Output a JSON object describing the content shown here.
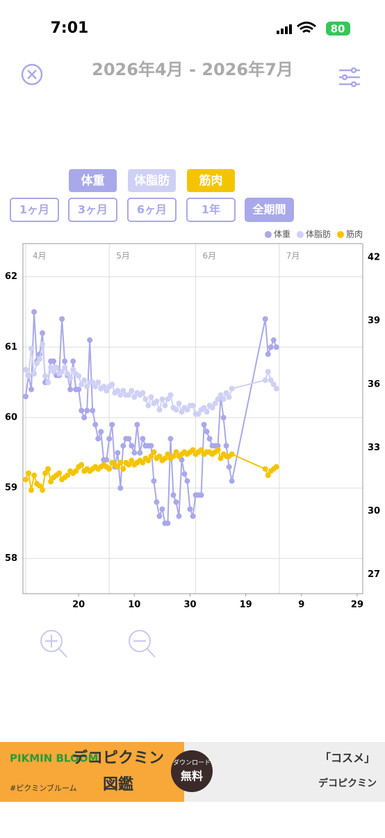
{
  "status_bar": {
    "time": "7:01",
    "battery": "80"
  },
  "header": {
    "title": "2026年4月 - 2026年7月"
  },
  "controls": {
    "ranges": [
      "1ヶ月",
      "3ヶ月",
      "6ヶ月",
      "1年",
      "全期間"
    ]
  },
  "chart_data": {
    "type": "line",
    "x": [
      1,
      2,
      3,
      4,
      5,
      6,
      7,
      8,
      9,
      10,
      11,
      12,
      13,
      14,
      15,
      16,
      17,
      18,
      19,
      20,
      21,
      22,
      23,
      24,
      25,
      26,
      27,
      28,
      29,
      30,
      31,
      32,
      33,
      34,
      35,
      36,
      37,
      38,
      39,
      40,
      41,
      42,
      43,
      44,
      45,
      46,
      47,
      48,
      49,
      50,
      51,
      52,
      53,
      54,
      55,
      56,
      57,
      58,
      59,
      60,
      61,
      62,
      63,
      64,
      65,
      66,
      67,
      68,
      69,
      70,
      71,
      72,
      73,
      74,
      75,
      87,
      88,
      89,
      90,
      91
    ],
    "series": [
      {
        "name": "体重",
        "color": "#a9a8ea",
        "axis": "y",
        "values": [
          60.3,
          60.6,
          60.4,
          61.5,
          60.8,
          60.9,
          61.2,
          60.5,
          60.5,
          60.8,
          60.8,
          60.6,
          60.6,
          61.4,
          60.8,
          60.6,
          60.4,
          60.8,
          60.4,
          60.4,
          60.1,
          60.0,
          60.1,
          61.1,
          60.1,
          59.9,
          59.7,
          59.8,
          59.4,
          59.4,
          59.7,
          59.9,
          59.3,
          59.5,
          59.0,
          59.6,
          59.7,
          59.7,
          59.6,
          59.5,
          59.9,
          59.5,
          59.7,
          59.6,
          59.6,
          59.6,
          59.1,
          58.8,
          58.6,
          58.7,
          58.5,
          58.5,
          59.7,
          58.9,
          58.8,
          58.6,
          59.4,
          59.2,
          59.1,
          58.7,
          58.6,
          58.9,
          58.9,
          58.9,
          59.9,
          59.8,
          59.7,
          59.6,
          59.6,
          59.6,
          60.3,
          60.0,
          59.6,
          59.3,
          59.1,
          61.4,
          60.9,
          61.0,
          61.1,
          61.0
        ]
      },
      {
        "name": "体脂肪",
        "color": "#cfd0f5",
        "axis": "y2",
        "values": [
          36.7,
          36.4,
          37.7,
          36.5,
          37.0,
          37.2,
          37.9,
          36.4,
          36.1,
          36.8,
          36.6,
          36.8,
          36.5,
          36.6,
          36.8,
          36.5,
          36.3,
          36.7,
          36.5,
          36.4,
          36.0,
          36.2,
          35.9,
          36.1,
          36.1,
          35.9,
          36.1,
          35.8,
          35.9,
          35.7,
          35.9,
          36.0,
          35.6,
          35.7,
          35.5,
          35.7,
          35.5,
          35.5,
          35.7,
          35.4,
          35.6,
          35.5,
          35.6,
          35.3,
          35.0,
          35.4,
          35.1,
          35.2,
          34.8,
          35.3,
          35.0,
          35.3,
          35.5,
          34.9,
          34.8,
          35.1,
          34.7,
          34.9,
          34.8,
          35.0,
          35.0,
          34.6,
          34.6,
          34.8,
          34.9,
          34.7,
          35.0,
          34.9,
          35.1,
          35.3,
          35.5,
          35.3,
          35.6,
          35.4,
          35.8,
          36.2,
          36.6,
          36.2,
          36.0,
          35.8
        ]
      },
      {
        "name": "筋肉",
        "color": "#f5c400",
        "axis": "y2",
        "values": [
          31.5,
          31.8,
          31.0,
          31.7,
          31.3,
          31.2,
          31.0,
          31.8,
          32.0,
          31.4,
          31.6,
          31.7,
          31.8,
          31.5,
          31.6,
          31.7,
          31.9,
          31.8,
          31.9,
          32.1,
          32.2,
          31.9,
          32.0,
          31.9,
          32.0,
          32.1,
          32.0,
          32.1,
          32.2,
          32.1,
          32.0,
          32.3,
          32.2,
          32.1,
          32.3,
          32.0,
          32.3,
          32.2,
          32.4,
          32.2,
          32.3,
          32.4,
          32.3,
          32.5,
          32.4,
          32.6,
          32.8,
          32.5,
          32.6,
          32.4,
          32.5,
          32.7,
          32.5,
          32.6,
          32.8,
          32.6,
          32.7,
          32.8,
          32.7,
          32.8,
          32.9,
          32.7,
          32.8,
          32.9,
          32.7,
          32.8,
          32.8,
          32.7,
          32.8,
          32.9,
          32.5,
          32.7,
          32.6,
          32.6,
          32.7,
          32.0,
          31.7,
          31.9,
          32.0,
          32.1
        ]
      }
    ],
    "xlim": [
      0,
      122
    ],
    "xticks": [
      20,
      {
        "value": 40,
        "label": "10"
      },
      {
        "value": 60,
        "label": "30"
      },
      {
        "value": 80,
        "label": "19"
      },
      {
        "value": 100,
        "label": "9"
      },
      {
        "value": 120,
        "label": "29"
      }
    ],
    "xticks_top": [
      {
        "value": 1,
        "label": "4月"
      },
      {
        "value": 31,
        "label": "5月"
      },
      {
        "value": 62,
        "label": "6月"
      },
      {
        "value": 92,
        "label": "7月"
      }
    ],
    "ylim": [
      57.5,
      62.47
    ],
    "yticks": [
      58,
      59,
      60,
      61,
      62
    ],
    "y2lim": [
      26.1,
      42.66
    ],
    "y2ticks": [
      27,
      30,
      33,
      36,
      39,
      42
    ],
    "grid": true,
    "legend": "top-right"
  },
  "ad": {
    "brand": "PIKMIN BLOOM",
    "title": "デコピクミン",
    "subtitle": "図鑑",
    "download": "ダウンロード",
    "free": "無料",
    "hashtag": "#ピクミンブルーム",
    "right_title": "「コスメ」",
    "right_sub": "デコピクミン"
  }
}
